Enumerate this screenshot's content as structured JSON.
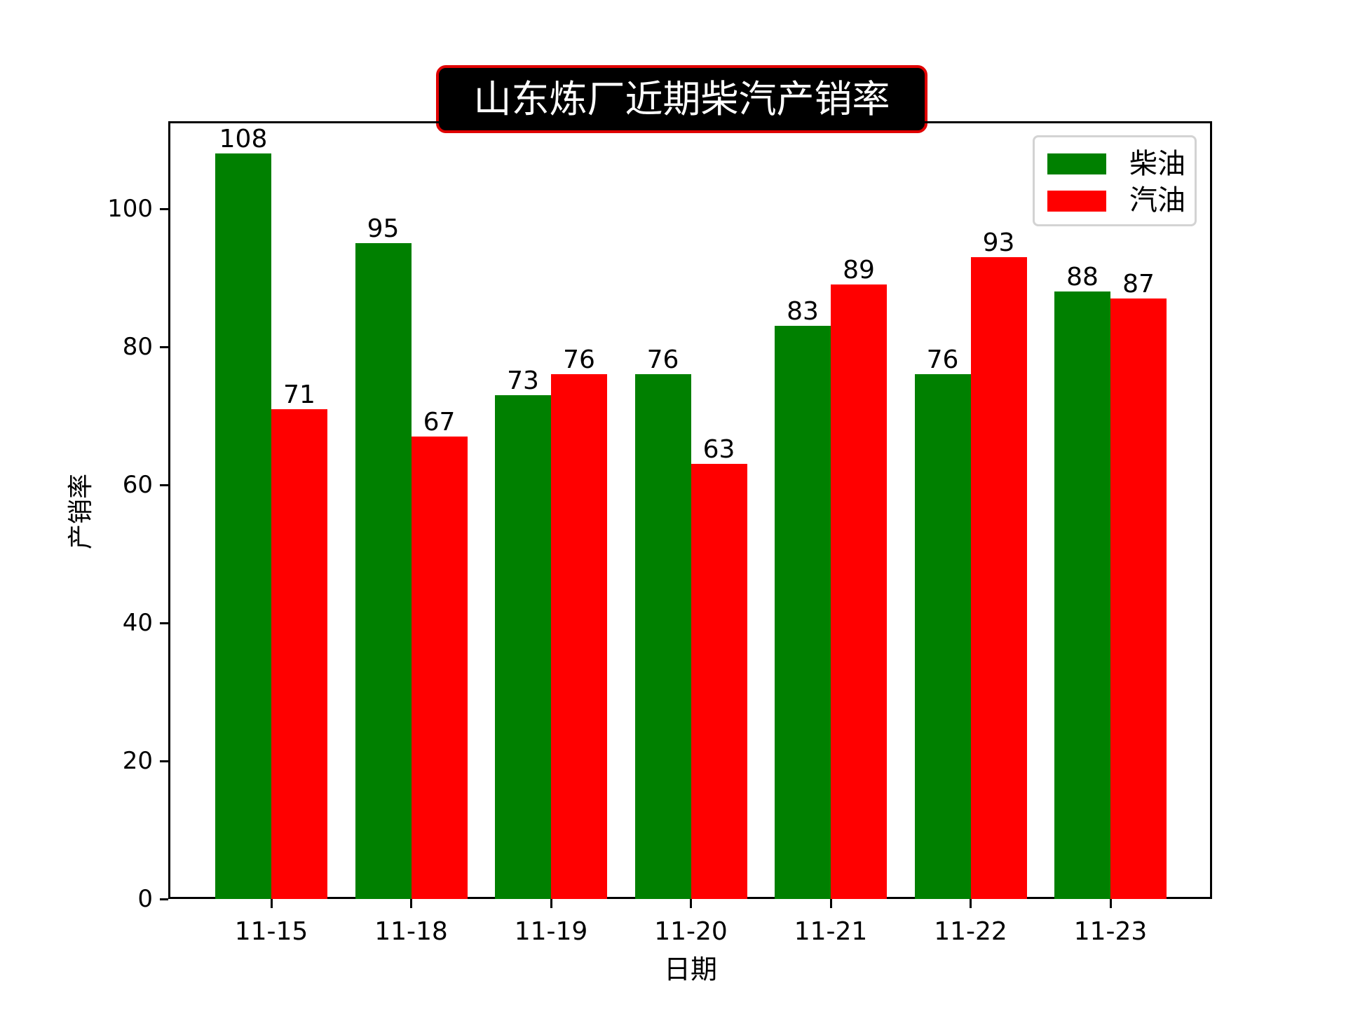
{
  "chart_data": {
    "type": "bar",
    "title": "山东炼厂近期柴汽产销率",
    "xlabel": "日期",
    "ylabel": "产销率",
    "categories": [
      "11-15",
      "11-18",
      "11-19",
      "11-20",
      "11-21",
      "11-22",
      "11-23"
    ],
    "series": [
      {
        "name": "柴油",
        "color": "#008000",
        "values": [
          108,
          95,
          73,
          76,
          83,
          76,
          88
        ]
      },
      {
        "name": "汽油",
        "color": "#ff0000",
        "values": [
          71,
          67,
          76,
          63,
          89,
          93,
          87
        ]
      }
    ],
    "yticks": [
      0,
      20,
      40,
      60,
      80,
      100
    ],
    "ylim": [
      0,
      113
    ],
    "grid": false,
    "legend_position": "upper right",
    "bar_labels": true,
    "title_style": {
      "background": "#000000",
      "border": "#e00000",
      "text_color": "#ffffff"
    }
  }
}
